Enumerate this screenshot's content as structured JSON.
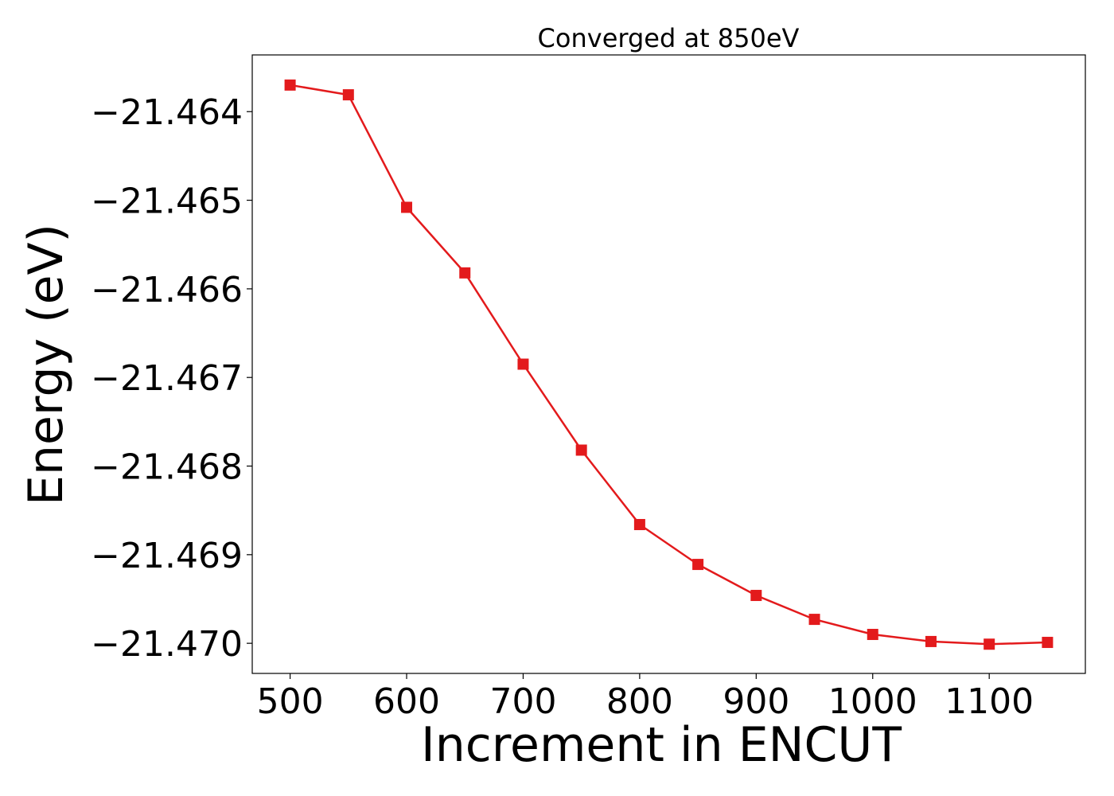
{
  "chart_data": {
    "type": "line",
    "title": "Converged at 850eV",
    "xlabel": "Increment in ENCUT",
    "ylabel": "Energy (eV)",
    "xlim": [
      467.5,
      1182.5
    ],
    "ylim": [
      -21.47034,
      -21.46336
    ],
    "grid": false,
    "x_ticks": [
      500,
      600,
      700,
      800,
      900,
      1000,
      1100
    ],
    "x_tick_labels": [
      "500",
      "600",
      "700",
      "800",
      "900",
      "1000",
      "1100"
    ],
    "y_ticks": [
      -21.464,
      -21.465,
      -21.466,
      -21.467,
      -21.468,
      -21.469,
      -21.47
    ],
    "y_tick_labels": [
      "−21.464",
      "−21.465",
      "−21.466",
      "−21.467",
      "−21.468",
      "−21.469",
      "−21.470"
    ],
    "series": [
      {
        "color": "#e31a1c",
        "marker": "square",
        "x": [
          500,
          550,
          600,
          650,
          700,
          750,
          800,
          850,
          900,
          950,
          1000,
          1050,
          1100,
          1150
        ],
        "y": [
          -21.4637,
          -21.46381,
          -21.46508,
          -21.46582,
          -21.46685,
          -21.46782,
          -21.46866,
          -21.46911,
          -21.46946,
          -21.46973,
          -21.4699,
          -21.46998,
          -21.47001,
          -21.46999
        ]
      }
    ]
  }
}
